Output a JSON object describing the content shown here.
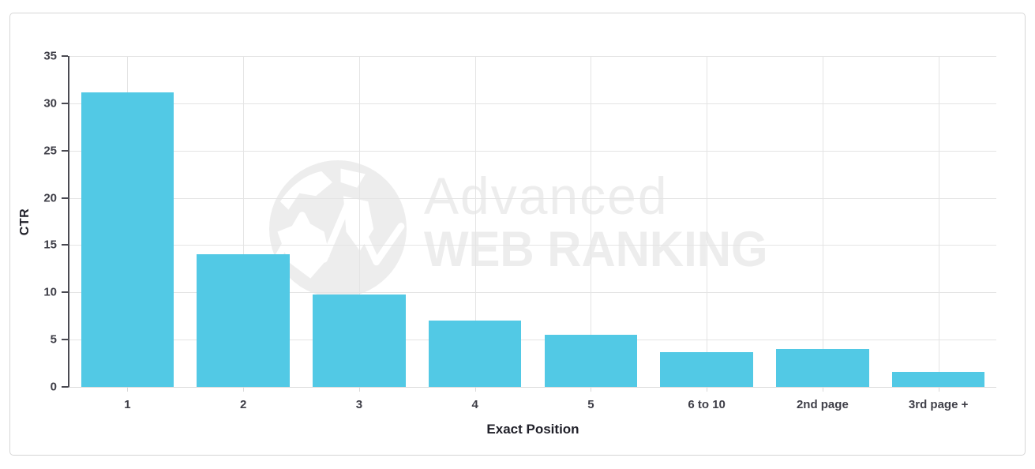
{
  "chart_data": {
    "type": "bar",
    "title": "",
    "categories": [
      "1",
      "2",
      "3",
      "4",
      "5",
      "6 to 10",
      "2nd page",
      "3rd page +"
    ],
    "values": [
      31.2,
      14.0,
      9.8,
      7.0,
      5.5,
      3.7,
      4.0,
      1.6
    ],
    "xlabel": "Exact Position",
    "ylabel": "CTR",
    "ylim": [
      0,
      35
    ],
    "yticks": [
      0,
      5,
      10,
      15,
      20,
      25,
      30,
      35
    ],
    "grid": "both",
    "legend": "none",
    "bar_color": "#52c9e5"
  },
  "watermark": {
    "icon": "globe-icon",
    "line1": "Advanced",
    "line2": "WEB RANKING",
    "color": "#ededed"
  },
  "colors": {
    "panel_border": "#d6d6d6",
    "gridline": "#e4e4e4",
    "axis_line": "#4a4a52",
    "tick_label": "#3f3f48",
    "axis_title": "#1f1f28",
    "background": "#ffffff"
  }
}
